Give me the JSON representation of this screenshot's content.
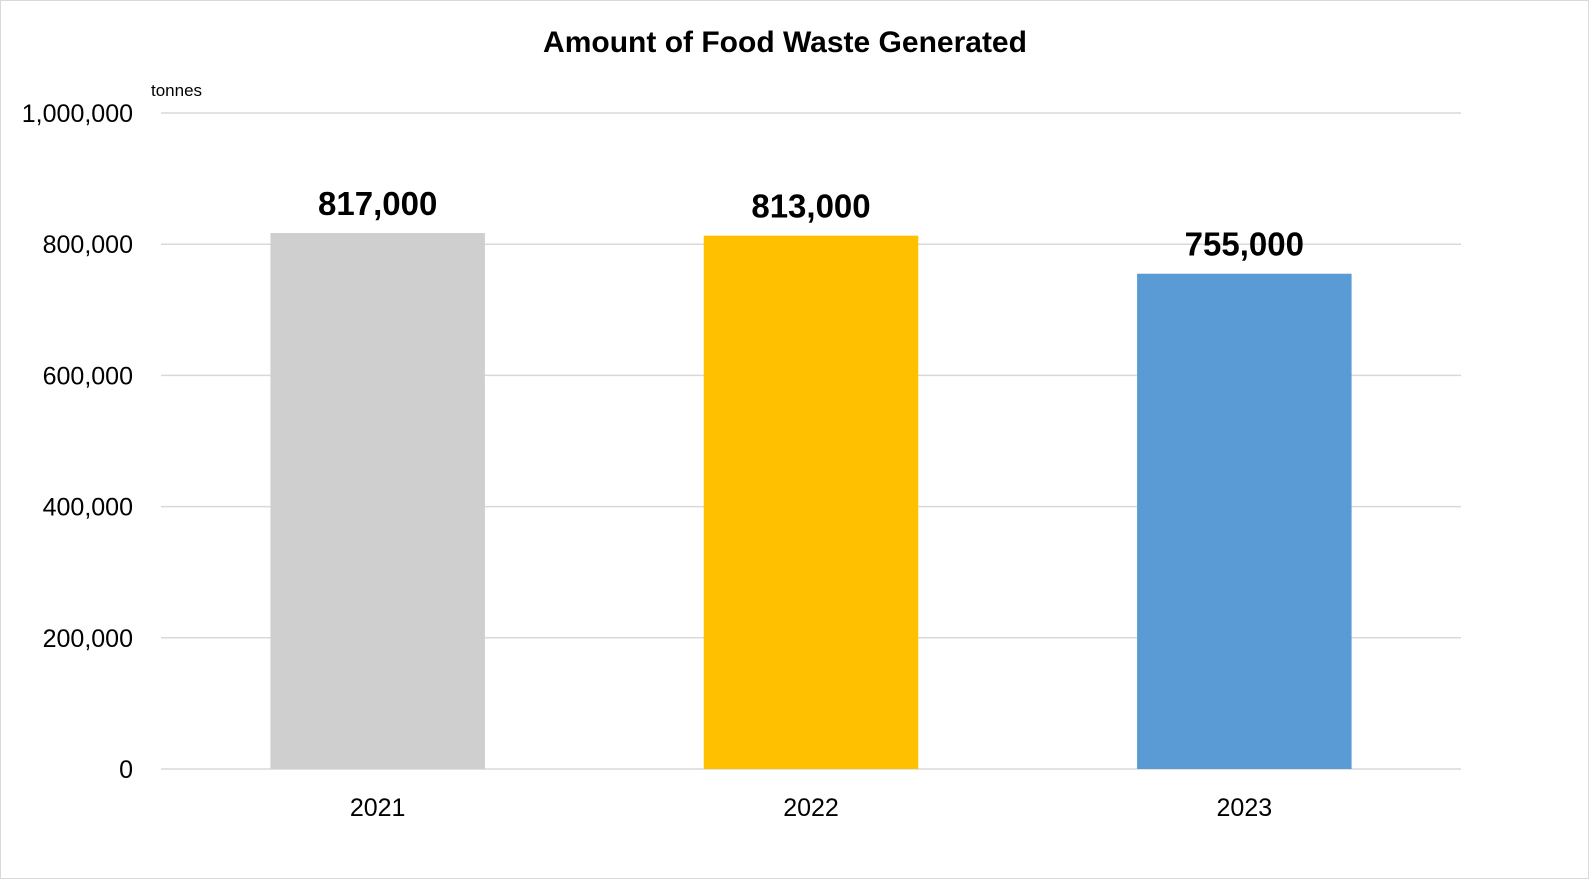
{
  "chart_data": {
    "type": "bar",
    "title": "Amount of Food Waste Generated",
    "unit_label": "tonnes",
    "xlabel": "",
    "ylabel": "",
    "categories": [
      "2021",
      "2022",
      "2023"
    ],
    "values": [
      817000,
      813000,
      755000
    ],
    "data_labels": [
      "817,000",
      "813,000",
      "755,000"
    ],
    "colors": [
      "#d0cfcf",
      "#ffc000",
      "#5b9bd5"
    ],
    "ylim": [
      0,
      1000000
    ],
    "y_ticks": [
      0,
      200000,
      400000,
      600000,
      800000,
      1000000
    ],
    "y_tick_labels": [
      "0",
      "200,000",
      "400,000",
      "600,000",
      "800,000",
      "1,000,000"
    ],
    "grid": true,
    "legend": "none"
  }
}
